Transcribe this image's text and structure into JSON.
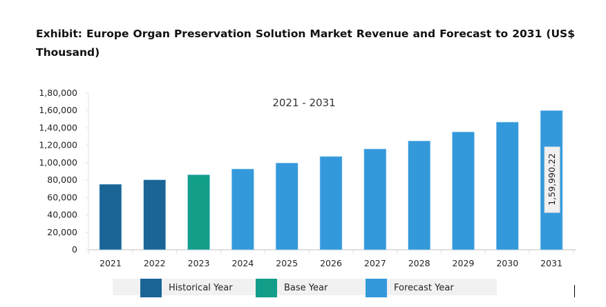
{
  "title": "Exhibit: Europe Organ Preservation Solution Market Revenue and Forecast to 2031 (US$ Thousand)",
  "chart_data": {
    "type": "bar",
    "title": "Exhibit: Europe Organ Preservation Solution Market Revenue and Forecast to 2031 (US$ Thousand)",
    "subtitle": "2021 - 2031",
    "categories": [
      "2021",
      "2022",
      "2023",
      "2024",
      "2025",
      "2026",
      "2027",
      "2028",
      "2029",
      "2030",
      "2031"
    ],
    "values": [
      75300,
      80400,
      86200,
      92800,
      99700,
      107200,
      115800,
      125000,
      135400,
      146700,
      159990.22
    ],
    "series_type": [
      "Historical Year",
      "Historical Year",
      "Base Year",
      "Forecast Year",
      "Forecast Year",
      "Forecast Year",
      "Forecast Year",
      "Forecast Year",
      "Forecast Year",
      "Forecast Year",
      "Forecast Year"
    ],
    "ylim": [
      0,
      180000
    ],
    "yticks": [
      0,
      20000,
      40000,
      60000,
      80000,
      100000,
      120000,
      140000,
      160000,
      180000
    ],
    "ytick_labels": [
      "0",
      "20,000",
      "40,000",
      "60,000",
      "80,000",
      "1,00,000",
      "1,20,000",
      "1,40,000",
      "1,60,000",
      "1,80,000"
    ],
    "xlabel": "",
    "ylabel": "",
    "data_label": {
      "category": "2031",
      "text": "1,59,990.22"
    },
    "legend": [
      {
        "name": "Historical Year",
        "color": "#1a6496"
      },
      {
        "name": "Base Year",
        "color": "#139e8a"
      },
      {
        "name": "Forecast Year",
        "color": "#3399db"
      }
    ],
    "legend_position": "bottom",
    "grid": false
  }
}
